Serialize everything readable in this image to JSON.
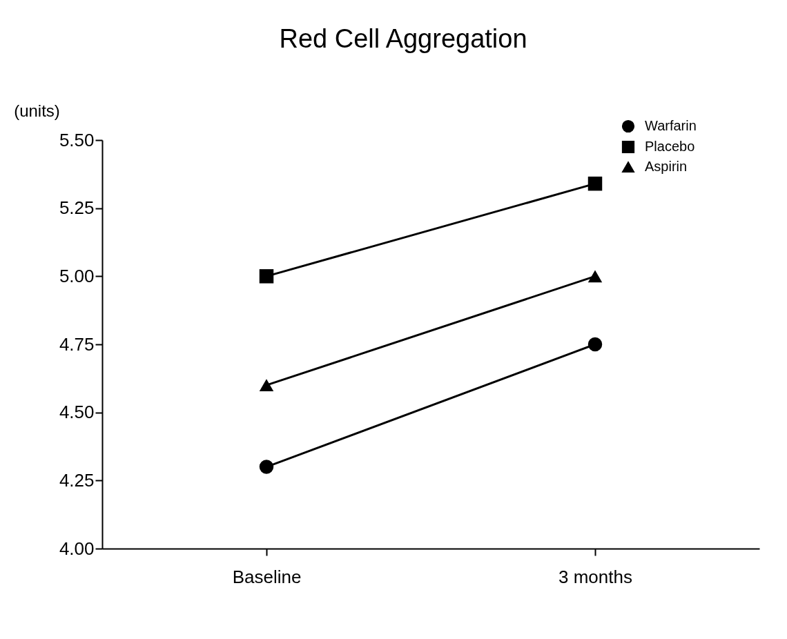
{
  "chart_data": {
    "type": "line",
    "title": "Red Cell Aggregation",
    "ylabel": "(units)",
    "categories": [
      "Baseline",
      "3 months"
    ],
    "series": [
      {
        "name": "Warfarin",
        "color": "#000000",
        "marker": "circle",
        "values": [
          4.3,
          4.75
        ]
      },
      {
        "name": "Placebo",
        "color": "#000000",
        "marker": "square",
        "values": [
          5.0,
          5.34
        ]
      },
      {
        "name": "Aspirin",
        "color": "#000000",
        "marker": "triangle",
        "values": [
          4.6,
          5.0
        ]
      }
    ],
    "ylim": [
      4.0,
      5.5
    ],
    "yticks": [
      {
        "value": 4.0,
        "label": "4.00"
      },
      {
        "value": 4.25,
        "label": "4.25"
      },
      {
        "value": 4.5,
        "label": "4.50"
      },
      {
        "value": 4.75,
        "label": "4.75"
      },
      {
        "value": 5.0,
        "label": "5.00"
      },
      {
        "value": 5.25,
        "label": "5.25"
      },
      {
        "value": 5.5,
        "label": "5.50"
      }
    ],
    "grid": false,
    "legend": "top right",
    "line_style": "solid"
  }
}
